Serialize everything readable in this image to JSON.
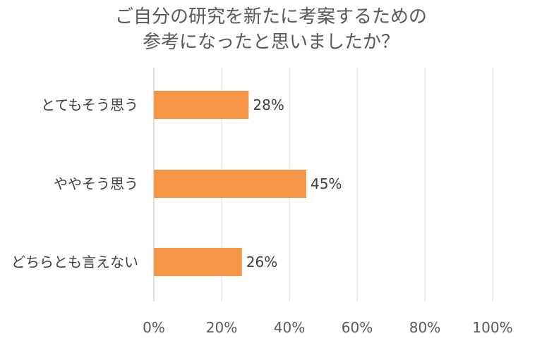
{
  "chart_data": {
    "type": "bar",
    "orientation": "horizontal",
    "title_lines": [
      "ご自分の研究を新たに考案するための",
      "参考になったと思いましたか？"
    ],
    "categories": [
      "とてもそう思う",
      "ややそう思う",
      "どちらとも言えない"
    ],
    "values": [
      28,
      45,
      26
    ],
    "data_labels": [
      "28%",
      "45%",
      "26%"
    ],
    "xlim": [
      0,
      100
    ],
    "x_ticks": [
      0,
      20,
      40,
      60,
      80,
      100
    ],
    "x_tick_labels": [
      "0%",
      "20%",
      "40%",
      "60%",
      "80%",
      "100%"
    ],
    "grid": true,
    "legend": "none",
    "colors": {
      "bar": "#F79646",
      "grid": "#D9D9D9",
      "text": "#595959"
    }
  }
}
